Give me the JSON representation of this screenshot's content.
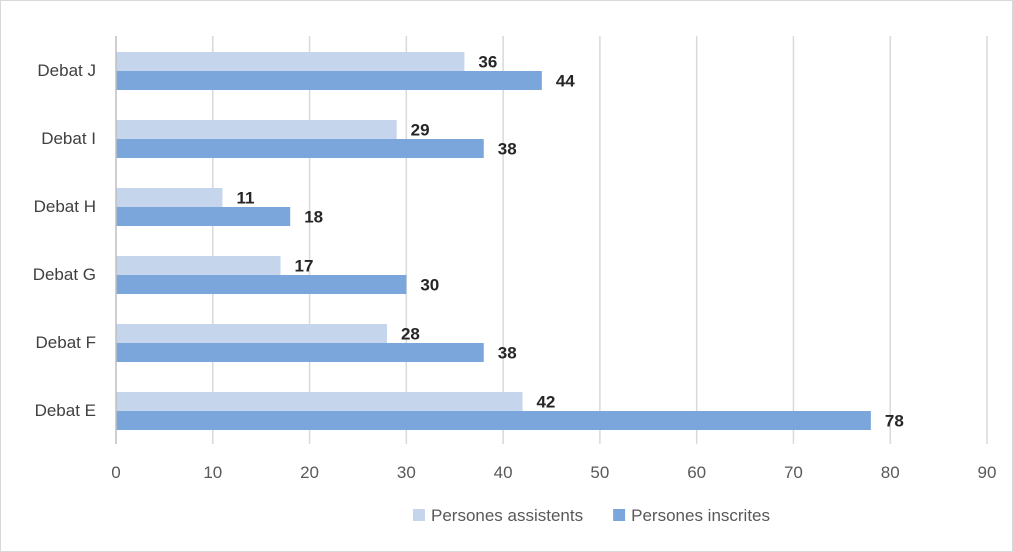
{
  "chart_data": {
    "type": "bar",
    "orientation": "horizontal",
    "title": "",
    "xlabel": "",
    "ylabel": "",
    "categories": [
      "Debat E",
      "Debat F",
      "Debat G",
      "Debat H",
      "Debat I",
      "Debat J"
    ],
    "series": [
      {
        "name": "Persones assistents",
        "color": "#c5d5ec",
        "values": [
          42,
          28,
          17,
          11,
          29,
          36
        ]
      },
      {
        "name": "Persones inscrites",
        "color": "#7aa6db",
        "values": [
          78,
          38,
          30,
          18,
          38,
          44
        ]
      }
    ],
    "xlim": [
      0,
      90
    ],
    "xticks": [
      0,
      10,
      20,
      30,
      40,
      50,
      60,
      70,
      80,
      90
    ],
    "grid": "vertical",
    "gridColor": "#d9d9d9",
    "legend": "bottom",
    "dataLabels": true
  }
}
